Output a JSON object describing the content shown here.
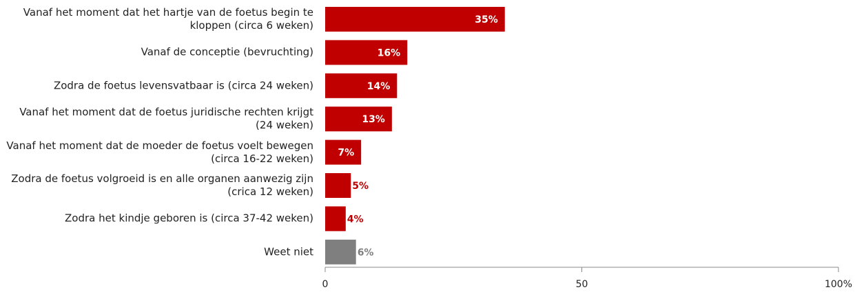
{
  "chart_data": {
    "type": "barh",
    "categories": [
      "Vanaf het moment dat het hartje van de foetus begin te kloppen (circa 6 weken)",
      "Vanaf de conceptie (bevruchting)",
      "Zodra de foetus levensvatbaar is (circa 24 weken)",
      "Vanaf het moment dat de foetus juridische rechten krijgt (24 weken)",
      "Vanaf het moment dat de moeder de foetus voelt bewegen (circa 16-22 weken)",
      "Zodra de foetus volgroeid is en alle organen aanwezig zijn (crica 12 weken)",
      "Zodra het kindje geboren is (circa 37-42 weken)",
      "Weet niet"
    ],
    "values": [
      35,
      16,
      14,
      13,
      7,
      5,
      4,
      6
    ],
    "value_labels": [
      "35%",
      "16%",
      "14%",
      "13%",
      "7%",
      "5%",
      "4%",
      "6%"
    ],
    "colors": [
      "#c00000",
      "#c00000",
      "#c00000",
      "#c00000",
      "#c00000",
      "#c00000",
      "#c00000",
      "#7f7f7f"
    ],
    "xlim": [
      0,
      100
    ],
    "xticks": [
      0,
      50,
      {
        "value": 100,
        "label": "100%"
      }
    ]
  }
}
